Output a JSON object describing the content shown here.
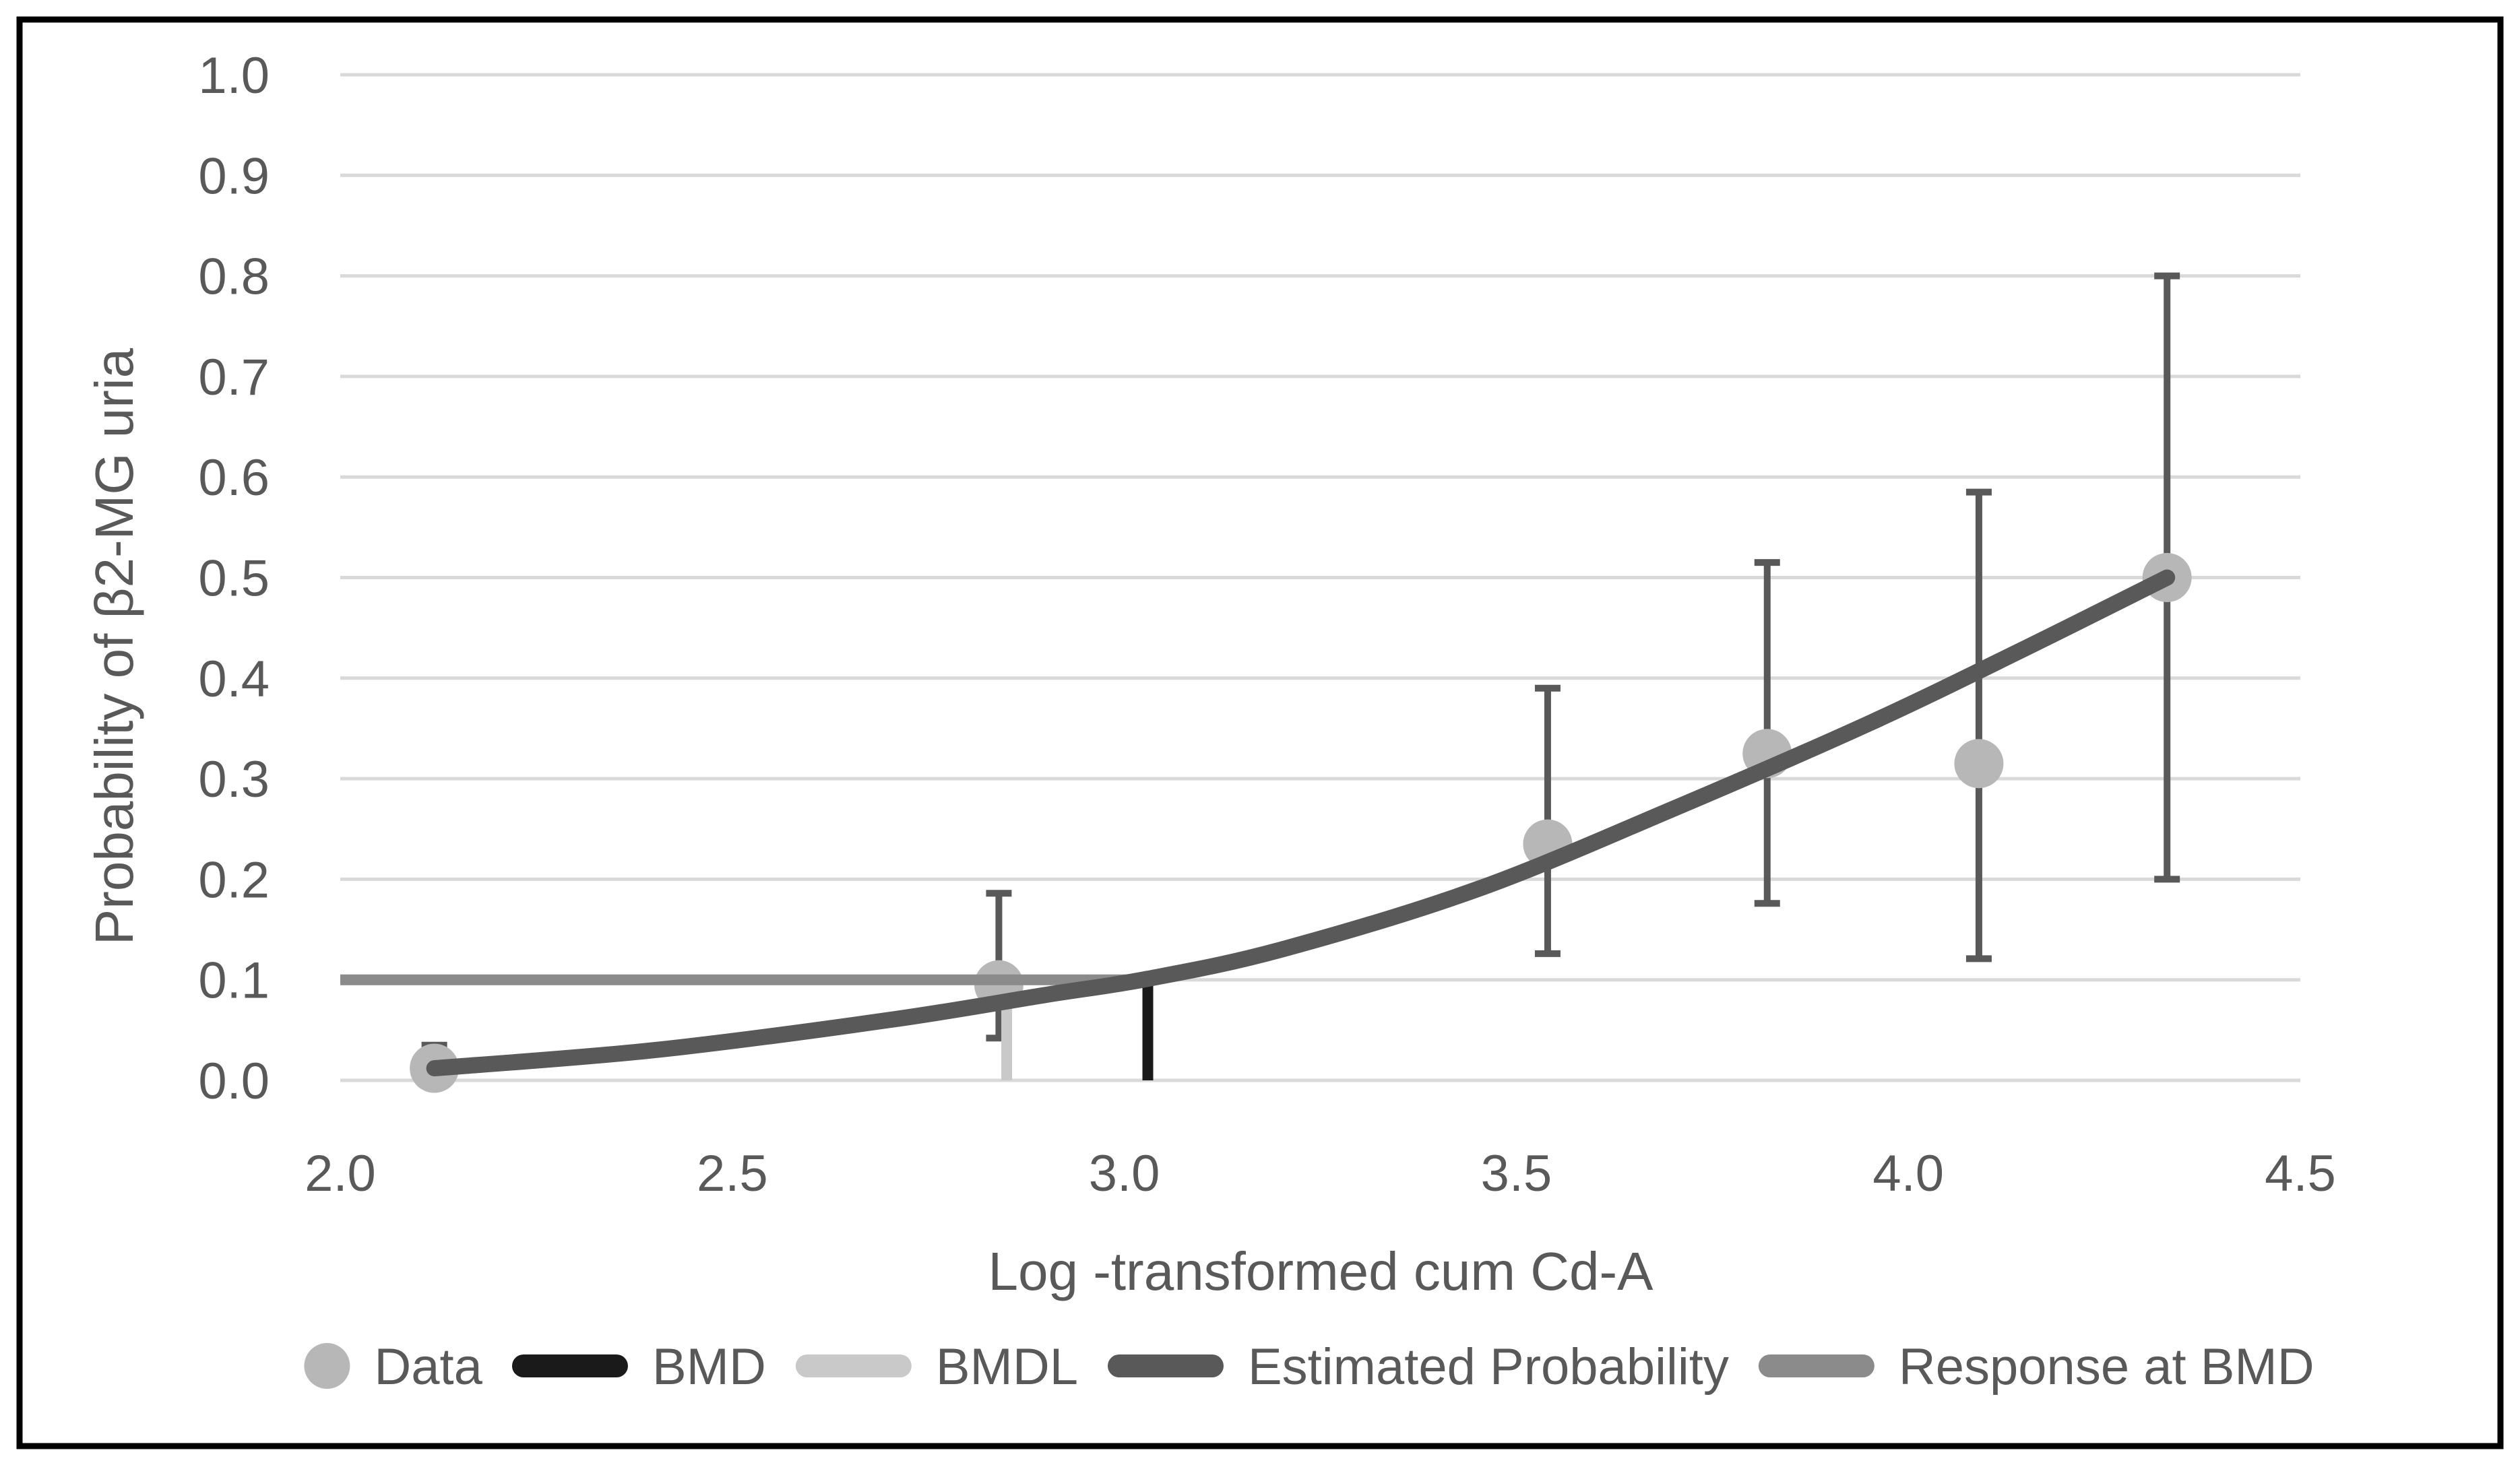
{
  "chart_data": {
    "type": "scatter",
    "title": "",
    "xlabel": "Log -transformed cum Cd-A",
    "ylabel": "Probability of β2-MG uria",
    "xlim": [
      2.0,
      4.5
    ],
    "ylim": [
      0.0,
      1.0
    ],
    "x_ticks": [
      "2.0",
      "2.5",
      "3.0",
      "3.5",
      "4.0",
      "4.5"
    ],
    "y_ticks": [
      "0.0",
      "0.1",
      "0.2",
      "0.3",
      "0.4",
      "0.5",
      "0.6",
      "0.7",
      "0.8",
      "0.9",
      "1.0"
    ],
    "grid": "horizontal-only",
    "legend_position": "bottom",
    "series": [
      {
        "name": "Data",
        "type": "scatter-with-error-bars",
        "points": [
          {
            "x": 2.12,
            "y": 0.012,
            "ci_low": null,
            "ci_high": 0.035
          },
          {
            "x": 2.84,
            "y": 0.095,
            "ci_low": 0.042,
            "ci_high": 0.186
          },
          {
            "x": 3.54,
            "y": 0.235,
            "ci_low": 0.126,
            "ci_high": 0.39
          },
          {
            "x": 3.82,
            "y": 0.325,
            "ci_low": 0.176,
            "ci_high": 0.515
          },
          {
            "x": 4.09,
            "y": 0.315,
            "ci_low": 0.121,
            "ci_high": 0.585
          },
          {
            "x": 4.33,
            "y": 0.5,
            "ci_low": 0.2,
            "ci_high": 0.8
          }
        ]
      },
      {
        "name": "BMD",
        "type": "vertical-line",
        "x": 3.03,
        "y_from": 0.0,
        "y_to": 0.1
      },
      {
        "name": "BMDL",
        "type": "vertical-line",
        "x": 2.85,
        "y_from": 0.0,
        "y_to": 0.1
      },
      {
        "name": "Estimated Probability",
        "type": "curve",
        "points": [
          [
            2.12,
            0.012
          ],
          [
            2.4,
            0.03
          ],
          [
            2.7,
            0.06
          ],
          [
            2.9,
            0.085
          ],
          [
            3.03,
            0.101
          ],
          [
            3.2,
            0.13
          ],
          [
            3.45,
            0.19
          ],
          [
            3.7,
            0.27
          ],
          [
            3.95,
            0.355
          ],
          [
            4.15,
            0.43
          ],
          [
            4.33,
            0.5
          ]
        ]
      },
      {
        "name": "Response at BMD",
        "type": "horizontal-line",
        "y": 0.1,
        "x_from": 2.0,
        "x_to": 3.04
      }
    ],
    "legend": [
      {
        "label": "Data",
        "marker": "circle",
        "color_key": "data_point"
      },
      {
        "label": "BMD",
        "marker": "line",
        "color_key": "bmd"
      },
      {
        "label": "BMDL",
        "marker": "line",
        "color_key": "bmdl"
      },
      {
        "label": "Estimated Probability",
        "marker": "line",
        "color_key": "estimated"
      },
      {
        "label": "Response at BMD",
        "marker": "line",
        "color_key": "response"
      }
    ]
  },
  "colors": {
    "background": "#ffffff",
    "frame": "#000000",
    "gridline": "#d9d9d9",
    "text": "#595959",
    "data_point": "#b7b7b7",
    "error_bar": "#595959",
    "bmd": "#1a1a1a",
    "bmdl": "#c9c9c9",
    "estimated": "#595959",
    "response": "#8b8b8b"
  }
}
